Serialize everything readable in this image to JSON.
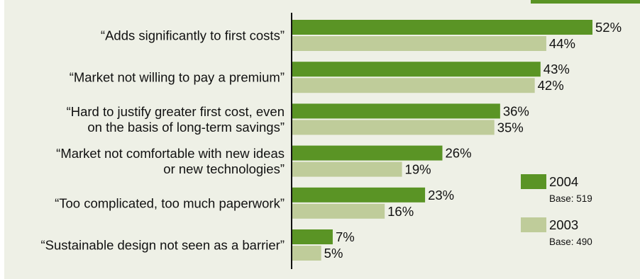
{
  "colors": {
    "background": "#eef0e6",
    "accent": "#5a9425",
    "series_2004": "#5a9425",
    "series_2003": "#bfcc9a",
    "axis": "#111111"
  },
  "chart_data": {
    "type": "bar",
    "orientation": "horizontal",
    "title": "",
    "xlabel": "",
    "ylabel": "",
    "xlim": [
      0,
      52
    ],
    "grid": false,
    "legend_position": "right",
    "value_suffix": "%",
    "categories": [
      [
        "“Adds significantly to first costs”"
      ],
      [
        "“Market not willing to pay a premium”"
      ],
      [
        "“Hard to justify greater first cost, even",
        "on the basis of long-term savings”"
      ],
      [
        "“Market not comfortable with new ideas",
        "or new technologies”"
      ],
      [
        "“Too complicated, too much paperwork”"
      ],
      [
        "“Sustainable design not seen as a barrier”"
      ]
    ],
    "series": [
      {
        "name": "2004",
        "base": "Base: 519",
        "color": "#5a9425",
        "values": [
          52,
          43,
          36,
          26,
          23,
          7
        ]
      },
      {
        "name": "2003",
        "base": "Base: 490",
        "color": "#bfcc9a",
        "values": [
          44,
          42,
          35,
          19,
          16,
          5
        ]
      }
    ]
  }
}
